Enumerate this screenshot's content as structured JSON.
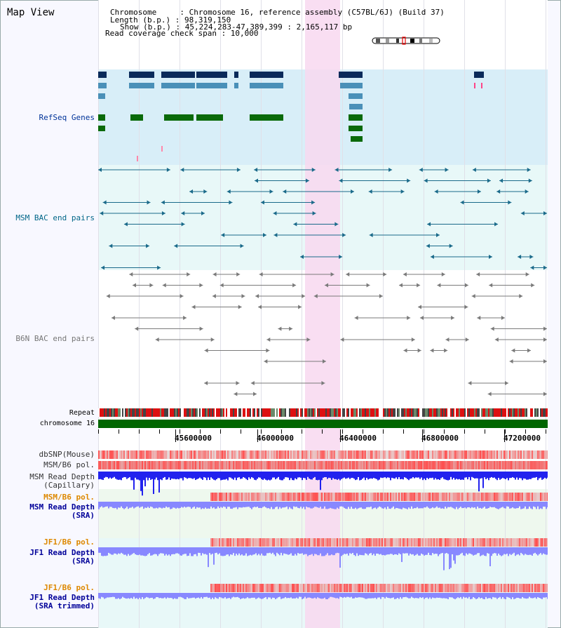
{
  "header": {
    "title": "Map View",
    "info_lines": [
      "Chromosome     : Chromosome 16, reference assembly (C57BL/6J) (Build 37)",
      "Length (b.p.) : 98,319,150",
      "Show (b.p.) : 45,224,283-47,389,399 : 2,165,117 bp",
      "Read coverage check span : 10,000"
    ]
  },
  "tracks": {
    "refseq": {
      "label": "RefSeq Genes",
      "color": "#003399"
    },
    "msm_bac": {
      "label": "MSM BAC end pairs",
      "color": "#006688"
    },
    "b6n_bac": {
      "label": "B6N BAC end pairs",
      "color": "#777777"
    },
    "repeat": {
      "label": "Repeat",
      "color": "#000000"
    },
    "chromosome": {
      "label": "chromosome 16",
      "color": "#000000"
    },
    "dbsnp": {
      "label": "dbSNP(Mouse)",
      "color": "#333333"
    },
    "msm_b6_pol_1": {
      "label": "MSM/B6 pol.",
      "color": "#333333"
    },
    "msm_read_depth_cap": {
      "label": "MSM Read Depth",
      "sub": "(Capillary)",
      "color": "#333333"
    },
    "msm_b6_pol_2": {
      "label": "MSM/B6 pol.",
      "color": "#dd8800"
    },
    "msm_read_depth_sra": {
      "label": "MSM Read Depth",
      "sub": "(SRA)",
      "color": "#000099"
    },
    "jf1_b6_pol_1": {
      "label": "JF1/B6 pol.",
      "color": "#dd8800"
    },
    "jf1_read_depth_sra": {
      "label": "JF1 Read Depth",
      "sub": "(SRA)",
      "color": "#000099"
    },
    "jf1_b6_pol_2": {
      "label": "JF1/B6 pol.",
      "color": "#dd8800"
    },
    "jf1_read_depth_trim": {
      "label": "JF1 Read Depth",
      "sub": "(SRA trimmed)",
      "color": "#000099"
    }
  },
  "axis": {
    "ticks": [
      "45600000",
      "46000000",
      "46400000",
      "46800000",
      "47200000"
    ]
  },
  "colors": {
    "highlight": "#f8d8f0",
    "refseq_bg": "#d8eef8",
    "bac_bg": "#e8f8f8",
    "gene_dark": "#0a2a5a",
    "gene_mid": "#4a90b8",
    "gene_green": "#0a6a0a",
    "chrom_green": "#006600",
    "depth_blue": "#2222ee",
    "depth_light": "#8888ff",
    "snp_red": "#f07070"
  }
}
